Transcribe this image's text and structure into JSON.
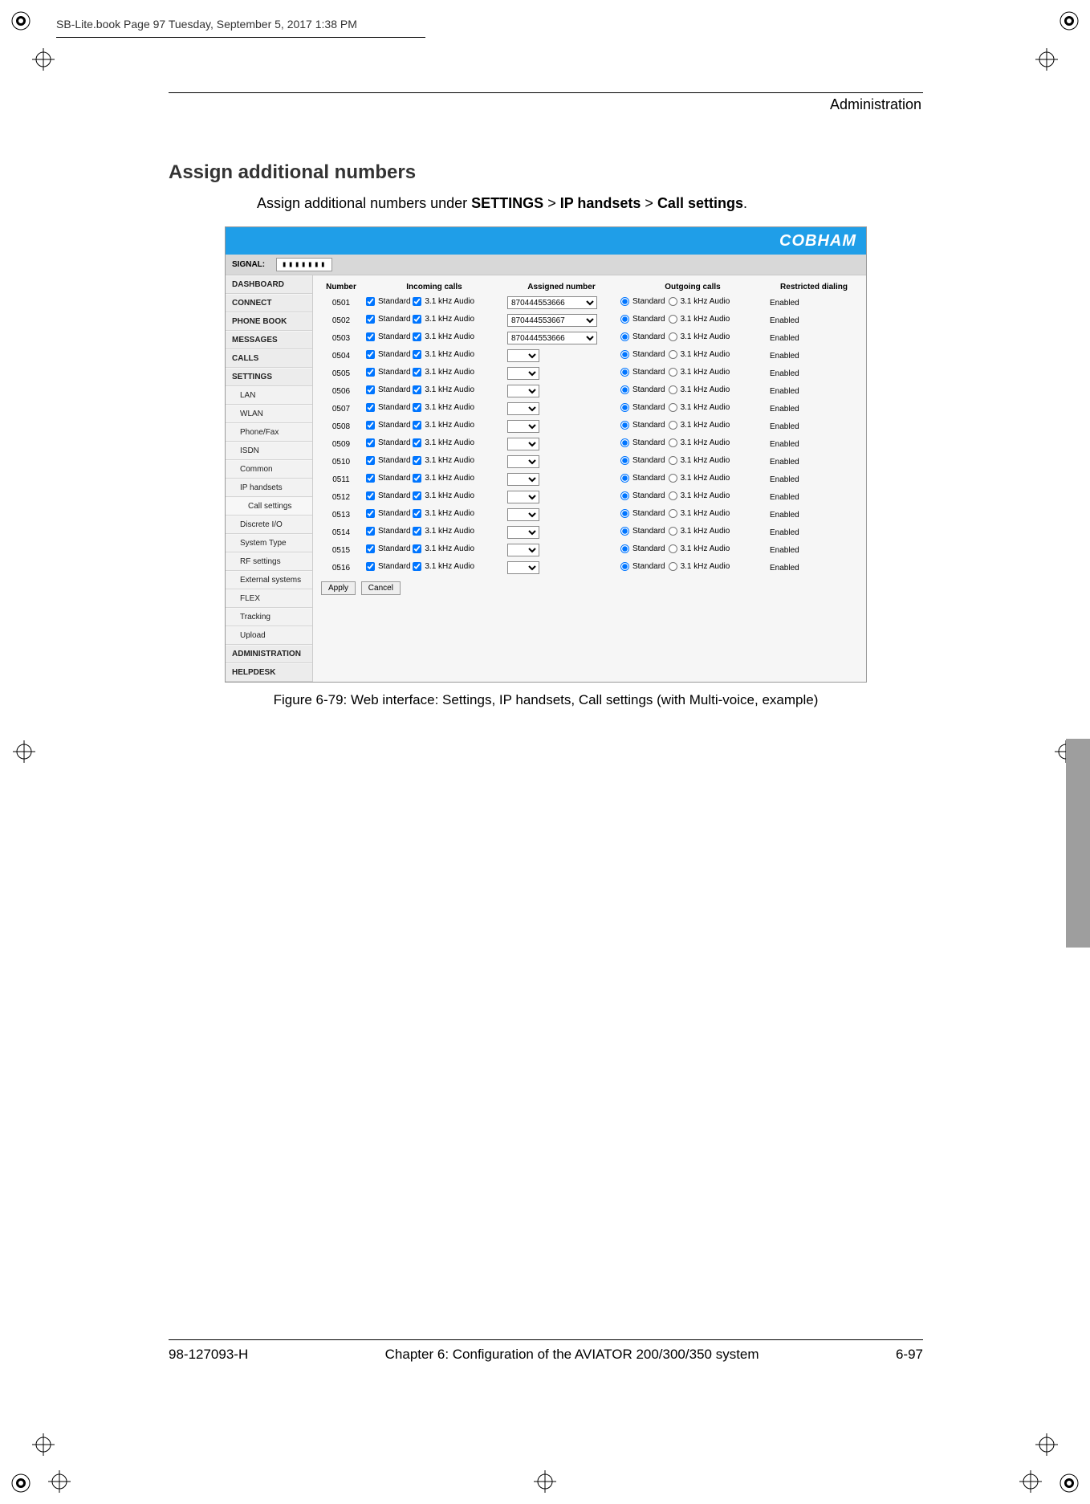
{
  "bookHeader": "SB-Lite.book  Page 97  Tuesday, September 5, 2017  1:38 PM",
  "sectionLabel": "Administration",
  "heading": "Assign additional numbers",
  "introParts": {
    "pre": "Assign additional numbers under ",
    "p1": "SETTINGS",
    "sep": " > ",
    "p2": "IP handsets",
    "p3": "Call settings",
    "post": "."
  },
  "brand": "COBHAM",
  "signalLabel": "SIGNAL:",
  "signalBars": "▮▮▮▮▮▮▮",
  "nav": [
    {
      "label": "DASHBOARD",
      "sub": false
    },
    {
      "label": "CONNECT",
      "sub": false
    },
    {
      "label": "PHONE BOOK",
      "sub": false
    },
    {
      "label": "MESSAGES",
      "sub": false
    },
    {
      "label": "CALLS",
      "sub": false
    },
    {
      "label": "SETTINGS",
      "sub": false
    },
    {
      "label": "LAN",
      "sub": true
    },
    {
      "label": "WLAN",
      "sub": true
    },
    {
      "label": "Phone/Fax",
      "sub": true
    },
    {
      "label": "ISDN",
      "sub": true
    },
    {
      "label": "Common",
      "sub": true
    },
    {
      "label": "IP handsets",
      "sub": true
    },
    {
      "label": "Call settings",
      "sub": true,
      "indent2": true
    },
    {
      "label": "Discrete I/O",
      "sub": true
    },
    {
      "label": "System Type",
      "sub": true
    },
    {
      "label": "RF settings",
      "sub": true
    },
    {
      "label": "External systems",
      "sub": true
    },
    {
      "label": "FLEX",
      "sub": true
    },
    {
      "label": "Tracking",
      "sub": true
    },
    {
      "label": "Upload",
      "sub": true
    },
    {
      "label": "ADMINISTRATION",
      "sub": false
    },
    {
      "label": "HELPDESK",
      "sub": false
    }
  ],
  "columns": {
    "c1": "Number",
    "c2": "Incoming calls",
    "c3": "Assigned number",
    "c4": "Outgoing calls",
    "c5": "Restricted dialing"
  },
  "optLabels": {
    "std": "Standard",
    "khz": "3.1 kHz Audio"
  },
  "restricted": "Enabled",
  "assignedA": "870444553666",
  "assignedB": "870444553667",
  "buttons": {
    "apply": "Apply",
    "cancel": "Cancel"
  },
  "rows": [
    {
      "num": "0501",
      "assigned": "870444553666"
    },
    {
      "num": "0502",
      "assigned": "870444553667"
    },
    {
      "num": "0503",
      "assigned": "870444553666"
    },
    {
      "num": "0504",
      "assigned": ""
    },
    {
      "num": "0505",
      "assigned": ""
    },
    {
      "num": "0506",
      "assigned": ""
    },
    {
      "num": "0507",
      "assigned": ""
    },
    {
      "num": "0508",
      "assigned": ""
    },
    {
      "num": "0509",
      "assigned": ""
    },
    {
      "num": "0510",
      "assigned": ""
    },
    {
      "num": "0511",
      "assigned": ""
    },
    {
      "num": "0512",
      "assigned": ""
    },
    {
      "num": "0513",
      "assigned": ""
    },
    {
      "num": "0514",
      "assigned": ""
    },
    {
      "num": "0515",
      "assigned": ""
    },
    {
      "num": "0516",
      "assigned": ""
    }
  ],
  "figureCaption": "Figure 6-79: Web interface: Settings, IP handsets, Call settings (with Multi-voice, example)",
  "footer": {
    "left": "98-127093-H",
    "center": "Chapter 6:  Configuration of the AVIATOR 200/300/350 system",
    "right": "6-97"
  }
}
